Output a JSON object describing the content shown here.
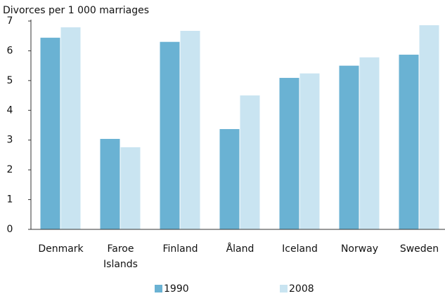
{
  "chart_data": {
    "type": "bar",
    "title": "Divorces per 1 000 marriages",
    "categories": [
      "Denmark",
      "Faroe Islands",
      "Finland",
      "Åland",
      "Iceland",
      "Norway",
      "Sweden"
    ],
    "series": [
      {
        "name": "1990",
        "color": "#6ab2d3",
        "values": [
          6.44,
          3.04,
          6.3,
          3.37,
          5.09,
          5.5,
          5.87
        ]
      },
      {
        "name": "2008",
        "color": "#c9e4f1",
        "values": [
          6.79,
          2.76,
          6.67,
          4.5,
          5.24,
          5.78,
          6.86
        ]
      }
    ],
    "ylim": [
      0,
      7
    ],
    "yticks": [
      0,
      1,
      2,
      3,
      4,
      5,
      6,
      7
    ],
    "grid": false,
    "legend": "bottom"
  }
}
